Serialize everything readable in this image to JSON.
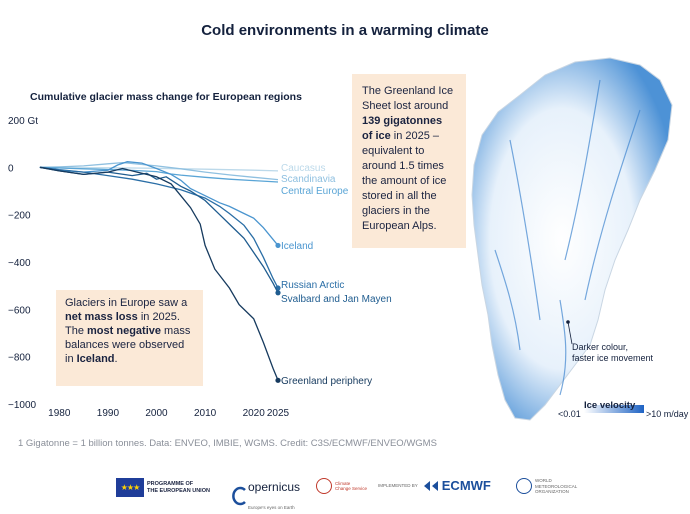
{
  "title": "Cold environments in a warming climate",
  "chart_data": {
    "type": "line",
    "title": "Cumulative glacier mass change for European regions",
    "ylabel": "",
    "y_unit_label": "Gt",
    "ylim": [
      -1000,
      200
    ],
    "xlim": [
      1975,
      2025
    ],
    "y_ticks": [
      200,
      0,
      -200,
      -400,
      -600,
      -800,
      -1000
    ],
    "x_ticks": [
      1980,
      1990,
      2000,
      2010,
      2020,
      2025
    ],
    "grid": false,
    "series": [
      {
        "name": "Caucasus",
        "color": "#bcd9ea",
        "x": [
          1976,
          1980,
          1985,
          1990,
          1995,
          2000,
          2005,
          2010,
          2015,
          2020,
          2025
        ],
        "y": [
          0,
          -1,
          -2,
          -2,
          -3,
          -4,
          -6,
          -8,
          -10,
          -12,
          -15
        ]
      },
      {
        "name": "Scandinavia",
        "color": "#8fc0e0",
        "x": [
          1976,
          1980,
          1985,
          1990,
          1993,
          1996,
          2000,
          2005,
          2010,
          2015,
          2020,
          2025
        ],
        "y": [
          0,
          2,
          6,
          15,
          20,
          14,
          6,
          -6,
          -20,
          -32,
          -42,
          -52
        ]
      },
      {
        "name": "Central Europe",
        "color": "#5aa5d6",
        "x": [
          1976,
          1980,
          1985,
          1990,
          1995,
          2000,
          2003,
          2005,
          2010,
          2015,
          2020,
          2025
        ],
        "y": [
          0,
          -3,
          -6,
          -9,
          -13,
          -18,
          -28,
          -33,
          -42,
          -50,
          -56,
          -62
        ]
      },
      {
        "name": "Iceland",
        "color": "#4a95cf",
        "x": [
          1976,
          1980,
          1985,
          1990,
          1992,
          1994,
          1997,
          2000,
          2003,
          2005,
          2007,
          2010,
          2013,
          2015,
          2018,
          2020,
          2022,
          2025
        ],
        "y": [
          0,
          -12,
          -20,
          -12,
          10,
          24,
          18,
          -5,
          -30,
          -55,
          -90,
          -120,
          -150,
          -165,
          -195,
          -215,
          -255,
          -330
        ]
      },
      {
        "name": "Russian Arctic",
        "color": "#2a6ea6",
        "x": [
          1976,
          1980,
          1985,
          1990,
          1995,
          2000,
          2005,
          2010,
          2013,
          2015,
          2018,
          2020,
          2022,
          2024,
          2025
        ],
        "y": [
          0,
          -10,
          -20,
          -35,
          -50,
          -70,
          -95,
          -130,
          -165,
          -195,
          -245,
          -300,
          -380,
          -470,
          -510
        ]
      },
      {
        "name": "Svalbard and Jan Mayen",
        "color": "#1f5c8f",
        "x": [
          1976,
          1980,
          1985,
          1990,
          1995,
          1998,
          2000,
          2002,
          2005,
          2007,
          2010,
          2013,
          2016,
          2018,
          2020,
          2022,
          2024,
          2025
        ],
        "y": [
          0,
          -15,
          -30,
          -20,
          -35,
          -25,
          -50,
          -40,
          -80,
          -100,
          -140,
          -200,
          -260,
          -300,
          -360,
          -420,
          -490,
          -530
        ]
      },
      {
        "name": "Greenland periphery",
        "color": "#163a5e",
        "x": [
          1976,
          1980,
          1985,
          1990,
          1993,
          1996,
          2000,
          2003,
          2005,
          2007,
          2009,
          2010,
          2012,
          2015,
          2017,
          2020,
          2022,
          2024,
          2025
        ],
        "y": [
          0,
          -15,
          -30,
          -20,
          -5,
          -20,
          -40,
          -70,
          -120,
          -170,
          -240,
          -330,
          -430,
          -510,
          -580,
          -640,
          -740,
          -850,
          -900
        ]
      }
    ],
    "end_markers": [
      "Iceland",
      "Russian Arctic",
      "Svalbard and Jan Mayen",
      "Greenland periphery"
    ]
  },
  "annotation_europe": {
    "line1": "Glaciers in Europe saw a",
    "bold1": "net mass loss",
    "line2": " in 2025.",
    "line3a": "The ",
    "bold2": "most negative",
    "line3b": " mass",
    "line4": "balances were observed",
    "line5a": "in ",
    "bold3": "Iceland",
    "line5b": "."
  },
  "annotation_greenland": {
    "line1": "The Greenland Ice",
    "line2": "Sheet lost around",
    "bold1": "139 gigatonnes",
    "bold2": "of ice",
    "line3b": " in 2025 –",
    "line4": "equivalent to",
    "line5": "around 1.5 times",
    "line6": "the amount of ice",
    "line7": "stored in all the",
    "line8": "glaciers in the",
    "line9": "European Alps."
  },
  "map_note": {
    "line1": "Darker colour,",
    "line2": "faster ice movement"
  },
  "legend": {
    "title": "Ice velocity",
    "min": "<0.01",
    "max": ">10 m/day",
    "color_low": "#ffffff",
    "color_high": "#1e63c4"
  },
  "credit": "1 Gigatonne = 1 billion tonnes. Data: ENVEO, IMBIE, WGMS. Credit: C3S/ECMWF/ENVEO/WGMS",
  "footer": {
    "eu_line1": "PROGRAMME OF",
    "eu_line2": "THE EUROPEAN UNION",
    "copernicus": "opernicus",
    "copernicus_sub": "Europe's eyes on Earth",
    "climate_line1": "Climate",
    "climate_line2": "Change Service",
    "implemented": "IMPLEMENTED BY",
    "ecmwf": "ECMWF",
    "wmo_line1": "WORLD",
    "wmo_line2": "METEOROLOGICAL",
    "wmo_line3": "ORGANIZATION"
  }
}
